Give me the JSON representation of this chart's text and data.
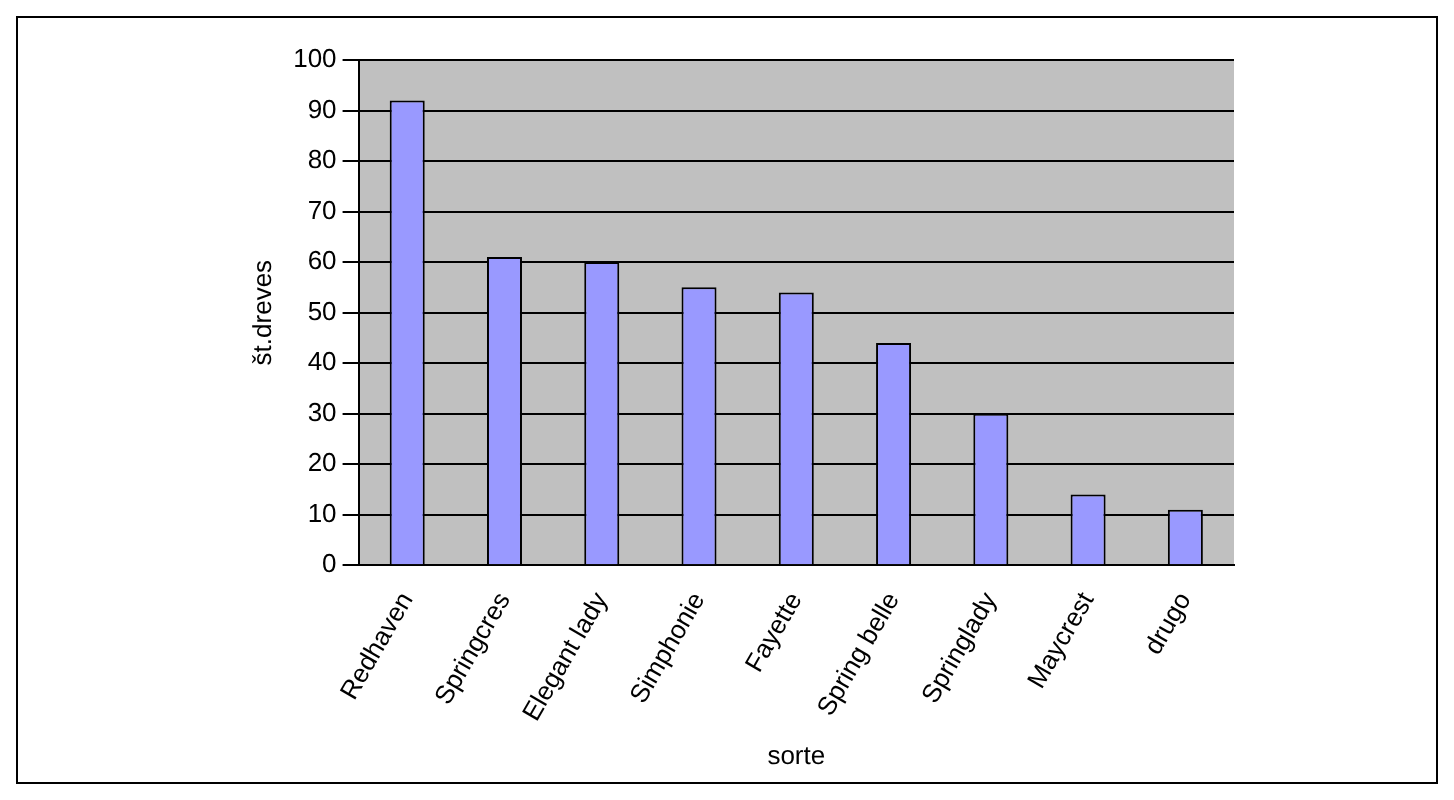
{
  "chart_data": {
    "type": "bar",
    "xlabel": "sorte",
    "ylabel": "št.dreves",
    "categories": [
      "Redhaven",
      "Springcres",
      "Elegant lady",
      "Simphonie",
      "Fayette",
      "Spring belle",
      "Springlady",
      "Maycrest",
      "drugo"
    ],
    "values": [
      92,
      61,
      60,
      55,
      54,
      44,
      30,
      14,
      11
    ],
    "color": "#9999ff",
    "ylim": [
      0,
      100
    ],
    "yticks": [
      0,
      10,
      20,
      30,
      40,
      50,
      60,
      70,
      80,
      90,
      100
    ],
    "grid": "y"
  }
}
